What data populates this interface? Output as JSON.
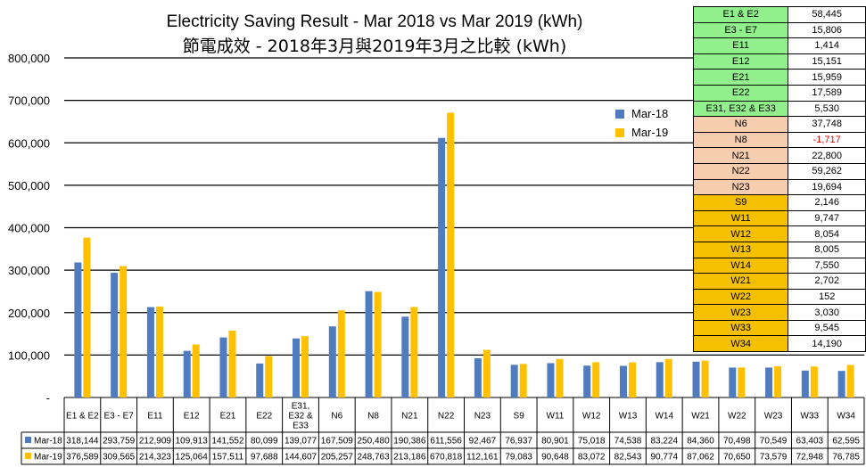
{
  "colors": {
    "mar18": "#4f7bbf",
    "mar19": "#ffc000",
    "group_e": "#92f08c",
    "group_n": "#f7cdb0",
    "group_w": "#f5c000"
  },
  "chart_data": {
    "type": "bar",
    "title": "Electricity Saving Result - Mar 2018 vs Mar 2019 (kWh)",
    "subtitle": "節電成效 - 2018年3月與2019年3月之比較 (kWh)",
    "ylim": [
      0,
      800000
    ],
    "yticks": [
      "800,000",
      "700,000",
      "600,000",
      "500,000",
      "400,000",
      "300,000",
      "200,000",
      "100,000",
      "-"
    ],
    "ytick_values": [
      800000,
      700000,
      600000,
      500000,
      400000,
      300000,
      200000,
      100000,
      0
    ],
    "grid": true,
    "legend": "right",
    "categories": [
      "E1 & E2",
      "E3 - E7",
      "E11",
      "E12",
      "E21",
      "E22",
      "E31, E32 & E33",
      "N6",
      "N8",
      "N21",
      "N22",
      "N23",
      "S9",
      "W11",
      "W12",
      "W13",
      "W14",
      "W21",
      "W22",
      "W23",
      "W33",
      "W34"
    ],
    "category_lines": [
      [
        "E1 & E2"
      ],
      [
        "E3 - E7"
      ],
      [
        "E11"
      ],
      [
        "E12"
      ],
      [
        "E21"
      ],
      [
        "E22"
      ],
      [
        "E31,",
        "E32 &",
        "E33"
      ],
      [
        "N6"
      ],
      [
        "N8"
      ],
      [
        "N21"
      ],
      [
        "N22"
      ],
      [
        "N23"
      ],
      [
        "S9"
      ],
      [
        "W11"
      ],
      [
        "W12"
      ],
      [
        "W13"
      ],
      [
        "W14"
      ],
      [
        "W21"
      ],
      [
        "W22"
      ],
      [
        "W23"
      ],
      [
        "W33"
      ],
      [
        "W34"
      ]
    ],
    "series": [
      {
        "name": "Mar-18",
        "values": [
          318144,
          293759,
          212909,
          109913,
          141552,
          80099,
          139077,
          167509,
          250480,
          190386,
          611556,
          92467,
          76937,
          80901,
          75018,
          74538,
          83224,
          84360,
          70498,
          70549,
          63403,
          62595
        ],
        "labels": [
          "318,144",
          "293,759",
          "212,909",
          "109,913",
          "141,552",
          "80,099",
          "139,077",
          "167,509",
          "250,480",
          "190,386",
          "611,556",
          "92,467",
          "76,937",
          "80,901",
          "75,018",
          "74,538",
          "83,224",
          "84,360",
          "70,498",
          "70,549",
          "63,403",
          "62,595"
        ]
      },
      {
        "name": "Mar-19",
        "values": [
          376589,
          309565,
          214323,
          125064,
          157511,
          97688,
          144607,
          205257,
          248763,
          213186,
          670818,
          112161,
          79083,
          90648,
          83072,
          82543,
          90774,
          87062,
          70650,
          73579,
          72948,
          76785
        ],
        "labels": [
          "376,589",
          "309,565",
          "214,323",
          "125,064",
          "157,511",
          "97,688",
          "144,607",
          "205,257",
          "248,763",
          "213,186",
          "670,818",
          "112,161",
          "79,083",
          "90,648",
          "83,072",
          "82,543",
          "90,774",
          "87,062",
          "70,650",
          "73,579",
          "72,948",
          "76,785"
        ]
      }
    ],
    "summary": [
      {
        "name": "E1 & E2",
        "value": "58,445",
        "group": "e"
      },
      {
        "name": "E3 - E7",
        "value": "15,806",
        "group": "e"
      },
      {
        "name": "E11",
        "value": "1,414",
        "group": "e"
      },
      {
        "name": "E12",
        "value": "15,151",
        "group": "e"
      },
      {
        "name": "E21",
        "value": "15,959",
        "group": "e"
      },
      {
        "name": "E22",
        "value": "17,589",
        "group": "e"
      },
      {
        "name": "E31, E32 & E33",
        "value": "5,530",
        "group": "e"
      },
      {
        "name": "N6",
        "value": "37,748",
        "group": "n"
      },
      {
        "name": "N8",
        "value": "-1,717",
        "group": "n"
      },
      {
        "name": "N21",
        "value": "22,800",
        "group": "n"
      },
      {
        "name": "N22",
        "value": "59,262",
        "group": "n"
      },
      {
        "name": "N23",
        "value": "19,694",
        "group": "n"
      },
      {
        "name": "S9",
        "value": "2,146",
        "group": "w"
      },
      {
        "name": "W11",
        "value": "9,747",
        "group": "w"
      },
      {
        "name": "W12",
        "value": "8,054",
        "group": "w"
      },
      {
        "name": "W13",
        "value": "8,005",
        "group": "w"
      },
      {
        "name": "W14",
        "value": "7,550",
        "group": "w"
      },
      {
        "name": "W21",
        "value": "2,702",
        "group": "w"
      },
      {
        "name": "W22",
        "value": "152",
        "group": "w"
      },
      {
        "name": "W23",
        "value": "3,030",
        "group": "w"
      },
      {
        "name": "W33",
        "value": "9,545",
        "group": "w"
      },
      {
        "name": "W34",
        "value": "14,190",
        "group": "w"
      }
    ]
  }
}
